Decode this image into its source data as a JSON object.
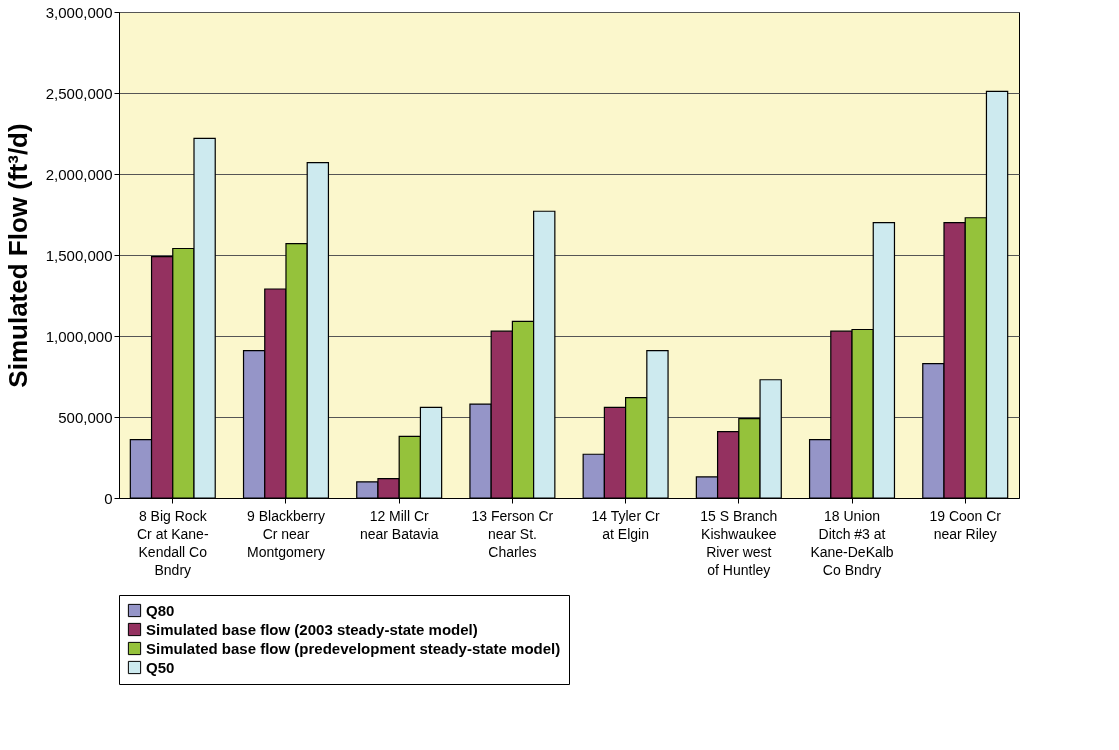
{
  "chart_data": {
    "type": "bar",
    "ylabel": "Simulated Flow (ft³/d)",
    "categories": [
      "8 Big Rock Cr at Kane-Kendall Co Bndry",
      "9 Blackberry Cr near Montgomery",
      "12 Mill Cr near Batavia",
      "13 Ferson Cr near St. Charles",
      "14 Tyler Cr at Elgin",
      "15 S Branch Kishwaukee River west of Huntley",
      "18 Union Ditch #3 at Kane-DeKalb Co Bndry",
      "19 Coon Cr near Riley"
    ],
    "series": [
      {
        "name": "Q80",
        "color": "#9595c8",
        "values": [
          360000,
          910000,
          100000,
          580000,
          270000,
          130000,
          360000,
          830000
        ]
      },
      {
        "name": "Simulated base flow (2003 steady-state model)",
        "color": "#943160",
        "values": [
          1490000,
          1290000,
          120000,
          1030000,
          560000,
          410000,
          1030000,
          1700000
        ]
      },
      {
        "name": "Simulated base flow (predevelopment steady-state model)",
        "color": "#95c23b",
        "values": [
          1540000,
          1570000,
          380000,
          1090000,
          620000,
          490000,
          1040000,
          1730000
        ]
      },
      {
        "name": "Q50",
        "color": "#cdeaef",
        "values": [
          2220000,
          2070000,
          560000,
          1770000,
          910000,
          730000,
          1700000,
          2510000
        ]
      }
    ],
    "ylim": [
      0,
      3000000
    ],
    "yticks": [
      0,
      {
        "value": 500000,
        "label": "500,000"
      },
      {
        "value": 1000000,
        "label": "1,000,000"
      },
      {
        "value": 1500000,
        "label": "1,500,000"
      },
      {
        "value": 2000000,
        "label": "2,000,000"
      },
      {
        "value": 2500000,
        "label": "2,500,000"
      },
      {
        "value": 3000000,
        "label": "3,000,000"
      }
    ],
    "grid": "y",
    "legend": "bottom"
  }
}
